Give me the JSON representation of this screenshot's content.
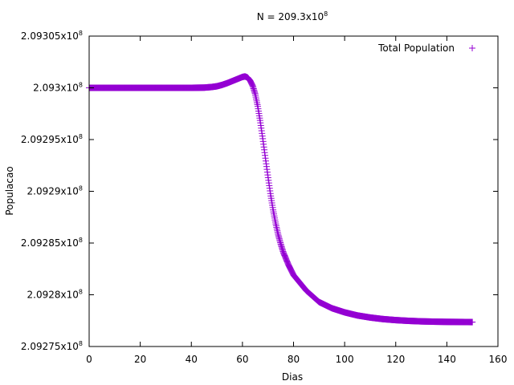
{
  "chart_data": {
    "type": "scatter",
    "title_base": "N = 209.3x10",
    "title_exp": "8",
    "xlabel": "Dias",
    "ylabel": "Populacao",
    "xlim": [
      0,
      160
    ],
    "ylim": [
      209275000,
      209305000
    ],
    "x_ticks": [
      0,
      20,
      40,
      60,
      80,
      100,
      120,
      140,
      160
    ],
    "y_ticks": [
      {
        "value": 209275000,
        "base": "2.09275x10",
        "exp": "8"
      },
      {
        "value": 209280000,
        "base": "2.0928x10",
        "exp": "8"
      },
      {
        "value": 209285000,
        "base": "2.09285x10",
        "exp": "8"
      },
      {
        "value": 209290000,
        "base": "2.0929x10",
        "exp": "8"
      },
      {
        "value": 209295000,
        "base": "2.09295x10",
        "exp": "8"
      },
      {
        "value": 209300000,
        "base": "2.093x10",
        "exp": "8"
      },
      {
        "value": 209305000,
        "base": "2.09305x10",
        "exp": "8"
      }
    ],
    "legend_position": "top-right",
    "series": [
      {
        "name": "Total Population",
        "color": "#9400d3",
        "marker": "+",
        "points": [
          [
            0,
            209300000
          ],
          [
            10,
            209300000
          ],
          [
            20,
            209300000
          ],
          [
            30,
            209300000
          ],
          [
            40,
            209300000
          ],
          [
            45,
            209300020
          ],
          [
            48,
            209300080
          ],
          [
            50,
            209300150
          ],
          [
            52,
            209300280
          ],
          [
            54,
            209300450
          ],
          [
            56,
            209300650
          ],
          [
            58,
            209300850
          ],
          [
            60,
            209301050
          ],
          [
            61,
            209301100
          ],
          [
            62,
            209301000
          ],
          [
            63,
            209300700
          ],
          [
            64,
            209300200
          ],
          [
            65,
            209299400
          ],
          [
            66,
            209298200
          ],
          [
            67,
            209296700
          ],
          [
            68,
            209295000
          ],
          [
            69,
            209293200
          ],
          [
            70,
            209291400
          ],
          [
            71,
            209289700
          ],
          [
            72,
            209288200
          ],
          [
            73,
            209286900
          ],
          [
            74,
            209285800
          ],
          [
            75,
            209284900
          ],
          [
            76,
            209284100
          ],
          [
            78,
            209282900
          ],
          [
            80,
            209281900
          ],
          [
            85,
            209280400
          ],
          [
            90,
            209279300
          ],
          [
            95,
            209278700
          ],
          [
            100,
            209278300
          ],
          [
            105,
            209278000
          ],
          [
            110,
            209277800
          ],
          [
            115,
            209277650
          ],
          [
            120,
            209277550
          ],
          [
            125,
            209277480
          ],
          [
            130,
            209277430
          ],
          [
            135,
            209277400
          ],
          [
            140,
            209277380
          ],
          [
            145,
            209277370
          ],
          [
            150,
            209277360
          ]
        ]
      }
    ]
  }
}
